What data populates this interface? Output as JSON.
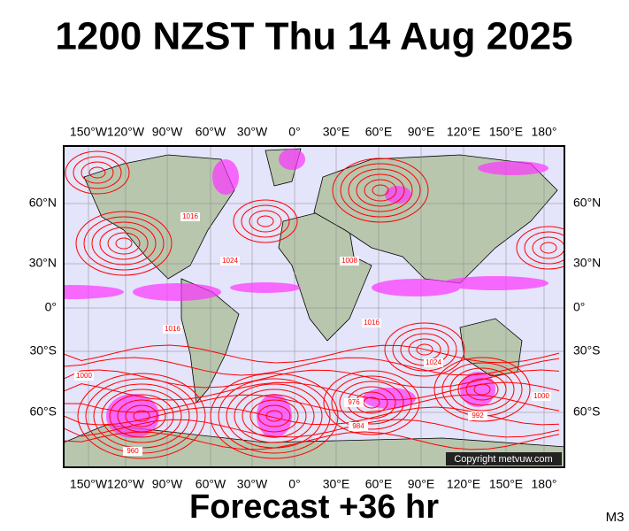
{
  "header": {
    "title": "1200 NZST Thu 14 Aug 2025"
  },
  "map": {
    "longitude_labels": [
      "150°W",
      "120°W",
      "90°W",
      "60°W",
      "30°W",
      "0°",
      "30°E",
      "60°E",
      "90°E",
      "120°E",
      "150°E",
      "180°"
    ],
    "latitude_labels": [
      "60°N",
      "30°N",
      "0°",
      "30°S",
      "60°S"
    ],
    "isobar_labels": [
      "1016",
      "1024",
      "1016",
      "1000",
      "960",
      "984",
      "976",
      "1024",
      "1000",
      "992",
      "1008",
      "1016"
    ],
    "copyright": "Copyright metvuw.com"
  },
  "footer": {
    "forecast": "Forecast +36 hr",
    "model": "M3"
  }
}
